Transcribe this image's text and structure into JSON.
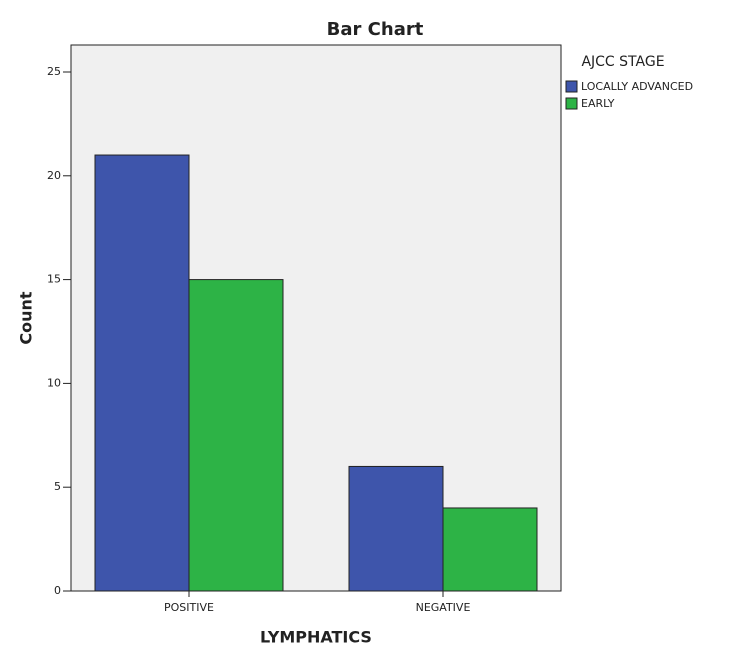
{
  "chart_data": {
    "type": "bar",
    "title": "Bar Chart",
    "x_label": "LYMPHATICS",
    "y_label": "Count",
    "categories": [
      "POSITIVE",
      "NEGATIVE"
    ],
    "legend_title": "AJCC STAGE",
    "series": [
      {
        "name": "LOCALLY ADVANCED",
        "color": "#3e55ab",
        "values": [
          21,
          6
        ]
      },
      {
        "name": "EARLY",
        "color": "#2db346",
        "values": [
          15,
          4
        ]
      }
    ],
    "ylim": [
      0,
      26.3
    ],
    "yticks": [
      0,
      5,
      10,
      15,
      20,
      25
    ],
    "grid": false,
    "legend": "right"
  }
}
